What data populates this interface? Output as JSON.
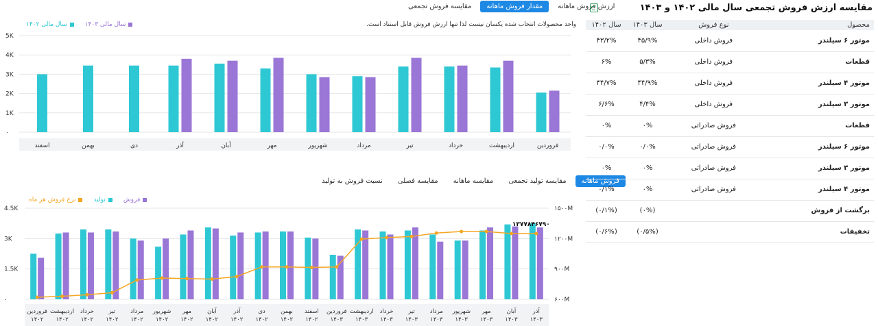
{
  "colors": {
    "teal": "#2ec8d4",
    "purple": "#9a76d6",
    "orange": "#f5a623",
    "accent": "#1e88e5"
  },
  "top_tabs": [
    {
      "label": "ارزش فروش ماهانه",
      "active": false
    },
    {
      "label": "مقدار فروش ماهانه",
      "active": true
    },
    {
      "label": "مقایسه فروش تجمعی",
      "active": false
    }
  ],
  "top_legend": [
    {
      "label": "سال مالی ۱۴۰۳",
      "color": "#9a76d6"
    },
    {
      "label": "سال مالی ۱۴۰۲",
      "color": "#2ec8d4"
    }
  ],
  "top_note": "واحد محصولات انتخاب شده یکسان نیست لذا تنها ارزش فروش قابل استناد است.",
  "bottom_tabs": [
    {
      "label": "فروش ماهانه",
      "active": true
    },
    {
      "label": "مقایسه تولید تجمعی",
      "active": false
    },
    {
      "label": "مقایسه ماهانه",
      "active": false
    },
    {
      "label": "مقایسه فصلی",
      "active": false
    },
    {
      "label": "نسبت فروش به تولید",
      "active": false
    }
  ],
  "bottom_legend": [
    {
      "label": "فروش",
      "color": "#9a76d6"
    },
    {
      "label": "تولید",
      "color": "#2ec8d4"
    },
    {
      "label": "نرخ فروش هر ماه",
      "color": "#f5a623"
    }
  ],
  "table": {
    "title": "مقایسه ارزش فروش تجمعی سال مالی ۱۴۰۲ و ۱۴۰۳",
    "headers": {
      "product": "محصول",
      "type": "نوع فروش",
      "y1403": "سال ۱۴۰۳",
      "y1402": "سال ۱۴۰۲"
    },
    "rows": [
      {
        "product": "موتور ۶ سیلندر",
        "type": "فروش داخلی",
        "y1403": "۴۵/۹%",
        "y1402": "۴۳/۲%"
      },
      {
        "product": "قطعات",
        "type": "فروش داخلی",
        "y1403": "۵/۳%",
        "y1402": "۶%"
      },
      {
        "product": "موتور ۴ سیلندر",
        "type": "فروش داخلی",
        "y1403": "۴۴/۹%",
        "y1402": "۴۴/۷%"
      },
      {
        "product": "موتور ۳ سیلندر",
        "type": "فروش داخلی",
        "y1403": "۴/۴%",
        "y1402": "۶/۶%"
      },
      {
        "product": "قطعات",
        "type": "فروش صادراتی",
        "y1403": "۰%",
        "y1402": "۰%"
      },
      {
        "product": "موتور ۶ سیلندر",
        "type": "فروش صادراتی",
        "y1403": "۰/۰%",
        "y1402": "۰/۰%"
      },
      {
        "product": "موتور ۳ سیلندر",
        "type": "فروش صادراتی",
        "y1403": "۰%",
        "y1402": "۰%"
      },
      {
        "product": "موتور ۴ سیلندر",
        "type": "فروش صادراتی",
        "y1403": "۰%",
        "y1402": "۰/۱%"
      },
      {
        "product": "برگشت از فروش",
        "type": "",
        "y1403": "(۰%)",
        "y1402": "(۰/۱%)"
      },
      {
        "product": "تخفیفات",
        "type": "",
        "y1403": "(۰/۵%)",
        "y1402": "(۰/۶%)"
      }
    ]
  },
  "chart_data": [
    {
      "type": "bar",
      "title": "",
      "categories": [
        "فروردین",
        "اردیبهشت",
        "خرداد",
        "تیر",
        "مرداد",
        "شهریور",
        "مهر",
        "آبان",
        "آذر",
        "دی",
        "بهمن",
        "اسفند"
      ],
      "yticks": [
        "۰",
        "1K",
        "2K",
        "3K",
        "4K",
        "5K"
      ],
      "ylim": [
        0,
        5000
      ],
      "series": [
        {
          "name": "سال مالی ۱۴۰۲",
          "color": "#2ec8d4",
          "values": [
            2050,
            3350,
            3400,
            3400,
            2900,
            3000,
            3300,
            3550,
            3450,
            3450,
            3450,
            3000
          ]
        },
        {
          "name": "سال مالی ۱۴۰۳",
          "color": "#9a76d6",
          "values": [
            2150,
            3700,
            3450,
            3850,
            2850,
            2850,
            3850,
            3700,
            3800,
            null,
            null,
            null
          ]
        }
      ]
    },
    {
      "type": "bar",
      "title": "",
      "categories": [
        "فروردین ۱۴۰۲",
        "اردیبهشت ۱۴۰۲",
        "خرداد ۱۴۰۲",
        "تیر ۱۴۰۲",
        "مرداد ۱۴۰۲",
        "شهریور ۱۴۰۲",
        "مهر ۱۴۰۲",
        "آبان ۱۴۰۲",
        "آذر ۱۴۰۲",
        "دی ۱۴۰۲",
        "بهمن ۱۴۰۲",
        "اسفند ۱۴۰۲",
        "فروردین ۱۴۰۳",
        "اردیبهشت ۱۴۰۳",
        "خرداد ۱۴۰۳",
        "تیر ۱۴۰۳",
        "مرداد ۱۴۰۳",
        "شهریور ۱۴۰۳",
        "مهر ۱۴۰۳",
        "آبان ۱۴۰۳",
        "آذر ۱۴۰۳"
      ],
      "yticks_left": [
        "۰",
        "1.5K",
        "3K",
        "4.5K"
      ],
      "ylim_left": [
        0,
        4500
      ],
      "yticks_right": [
        "۶۰۰M",
        "۹۰۰M",
        "۱۲۰۰M",
        "۱۵۰۰M"
      ],
      "ylim_right": [
        600,
        1500
      ],
      "annotation": "۱۳۷۷۸۴۶۷۹۰",
      "series": [
        {
          "name": "تولید",
          "color": "#2ec8d4",
          "values": [
            2250,
            3250,
            3450,
            3450,
            3000,
            2600,
            3200,
            3550,
            3150,
            3300,
            3350,
            3050,
            2200,
            3450,
            3350,
            3400,
            3200,
            2900,
            3400,
            3700,
            3750
          ]
        },
        {
          "name": "فروش",
          "color": "#9a76d6",
          "values": [
            2050,
            3300,
            3300,
            3350,
            2900,
            3000,
            3400,
            3500,
            3300,
            3350,
            3350,
            3000,
            2150,
            3400,
            3200,
            3550,
            2850,
            2900,
            3550,
            3600,
            3550
          ]
        },
        {
          "name": "نرخ فروش هر ماه",
          "color": "#f5a623",
          "axis": "right",
          "values": [
            620,
            630,
            645,
            665,
            790,
            810,
            805,
            800,
            825,
            920,
            920,
            915,
            920,
            1195,
            1210,
            1220,
            1255,
            1270,
            1270,
            1250,
            1250
          ]
        }
      ]
    }
  ]
}
